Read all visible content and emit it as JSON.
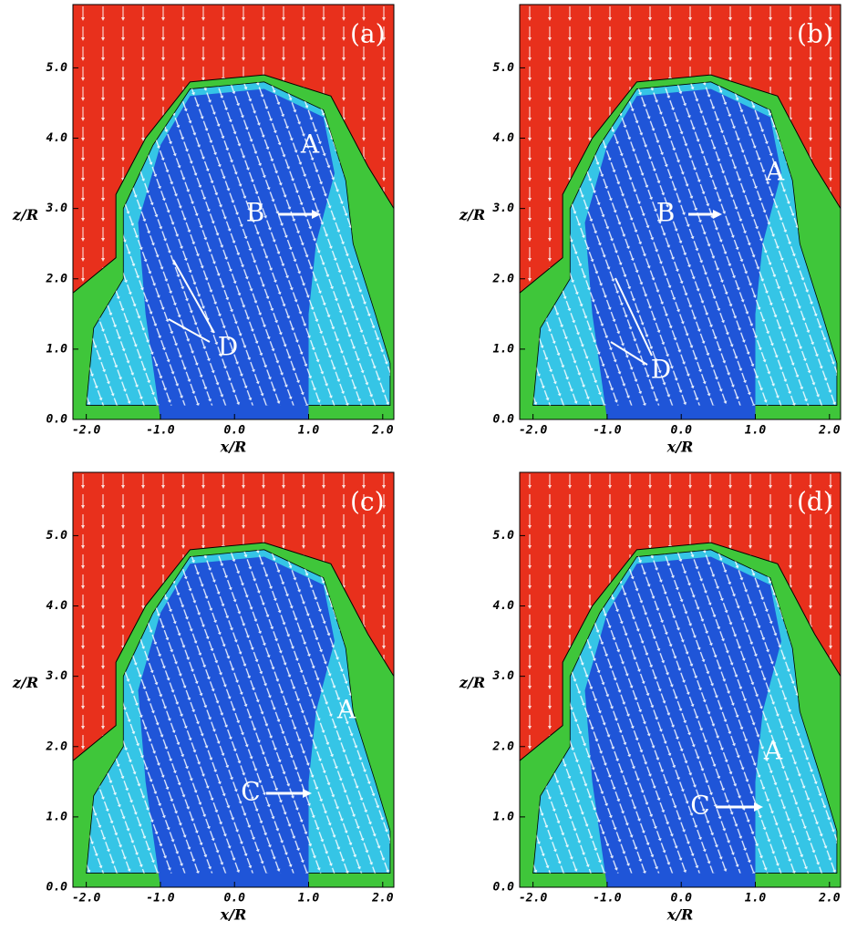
{
  "axes": {
    "x_label": "x/R",
    "y_label": "z/R",
    "xlim": [
      -2.18,
      2.15
    ],
    "ylim": [
      0,
      5.9
    ],
    "xticks": [
      {
        "value": -2,
        "label": "-2.0"
      },
      {
        "value": -1,
        "label": "-1.0"
      },
      {
        "value": 0,
        "label": "0.0"
      },
      {
        "value": 1,
        "label": "1.0"
      },
      {
        "value": 2,
        "label": "2.0"
      }
    ],
    "yticks": [
      {
        "value": 0,
        "label": "0.0"
      },
      {
        "value": 1,
        "label": "1.0"
      },
      {
        "value": 2,
        "label": "2.0"
      },
      {
        "value": 3,
        "label": "3.0"
      },
      {
        "value": 4,
        "label": "4.0"
      },
      {
        "value": 5,
        "label": "5.0"
      }
    ]
  },
  "panels": [
    {
      "label": "(a)",
      "annotations": [
        "A",
        "B",
        "D"
      ]
    },
    {
      "label": "(b)",
      "annotations": [
        "A",
        "B",
        "D"
      ]
    },
    {
      "label": "(c)",
      "annotations": [
        "A",
        "C"
      ]
    },
    {
      "label": "(d)",
      "annotations": [
        "A",
        "C"
      ]
    }
  ]
}
